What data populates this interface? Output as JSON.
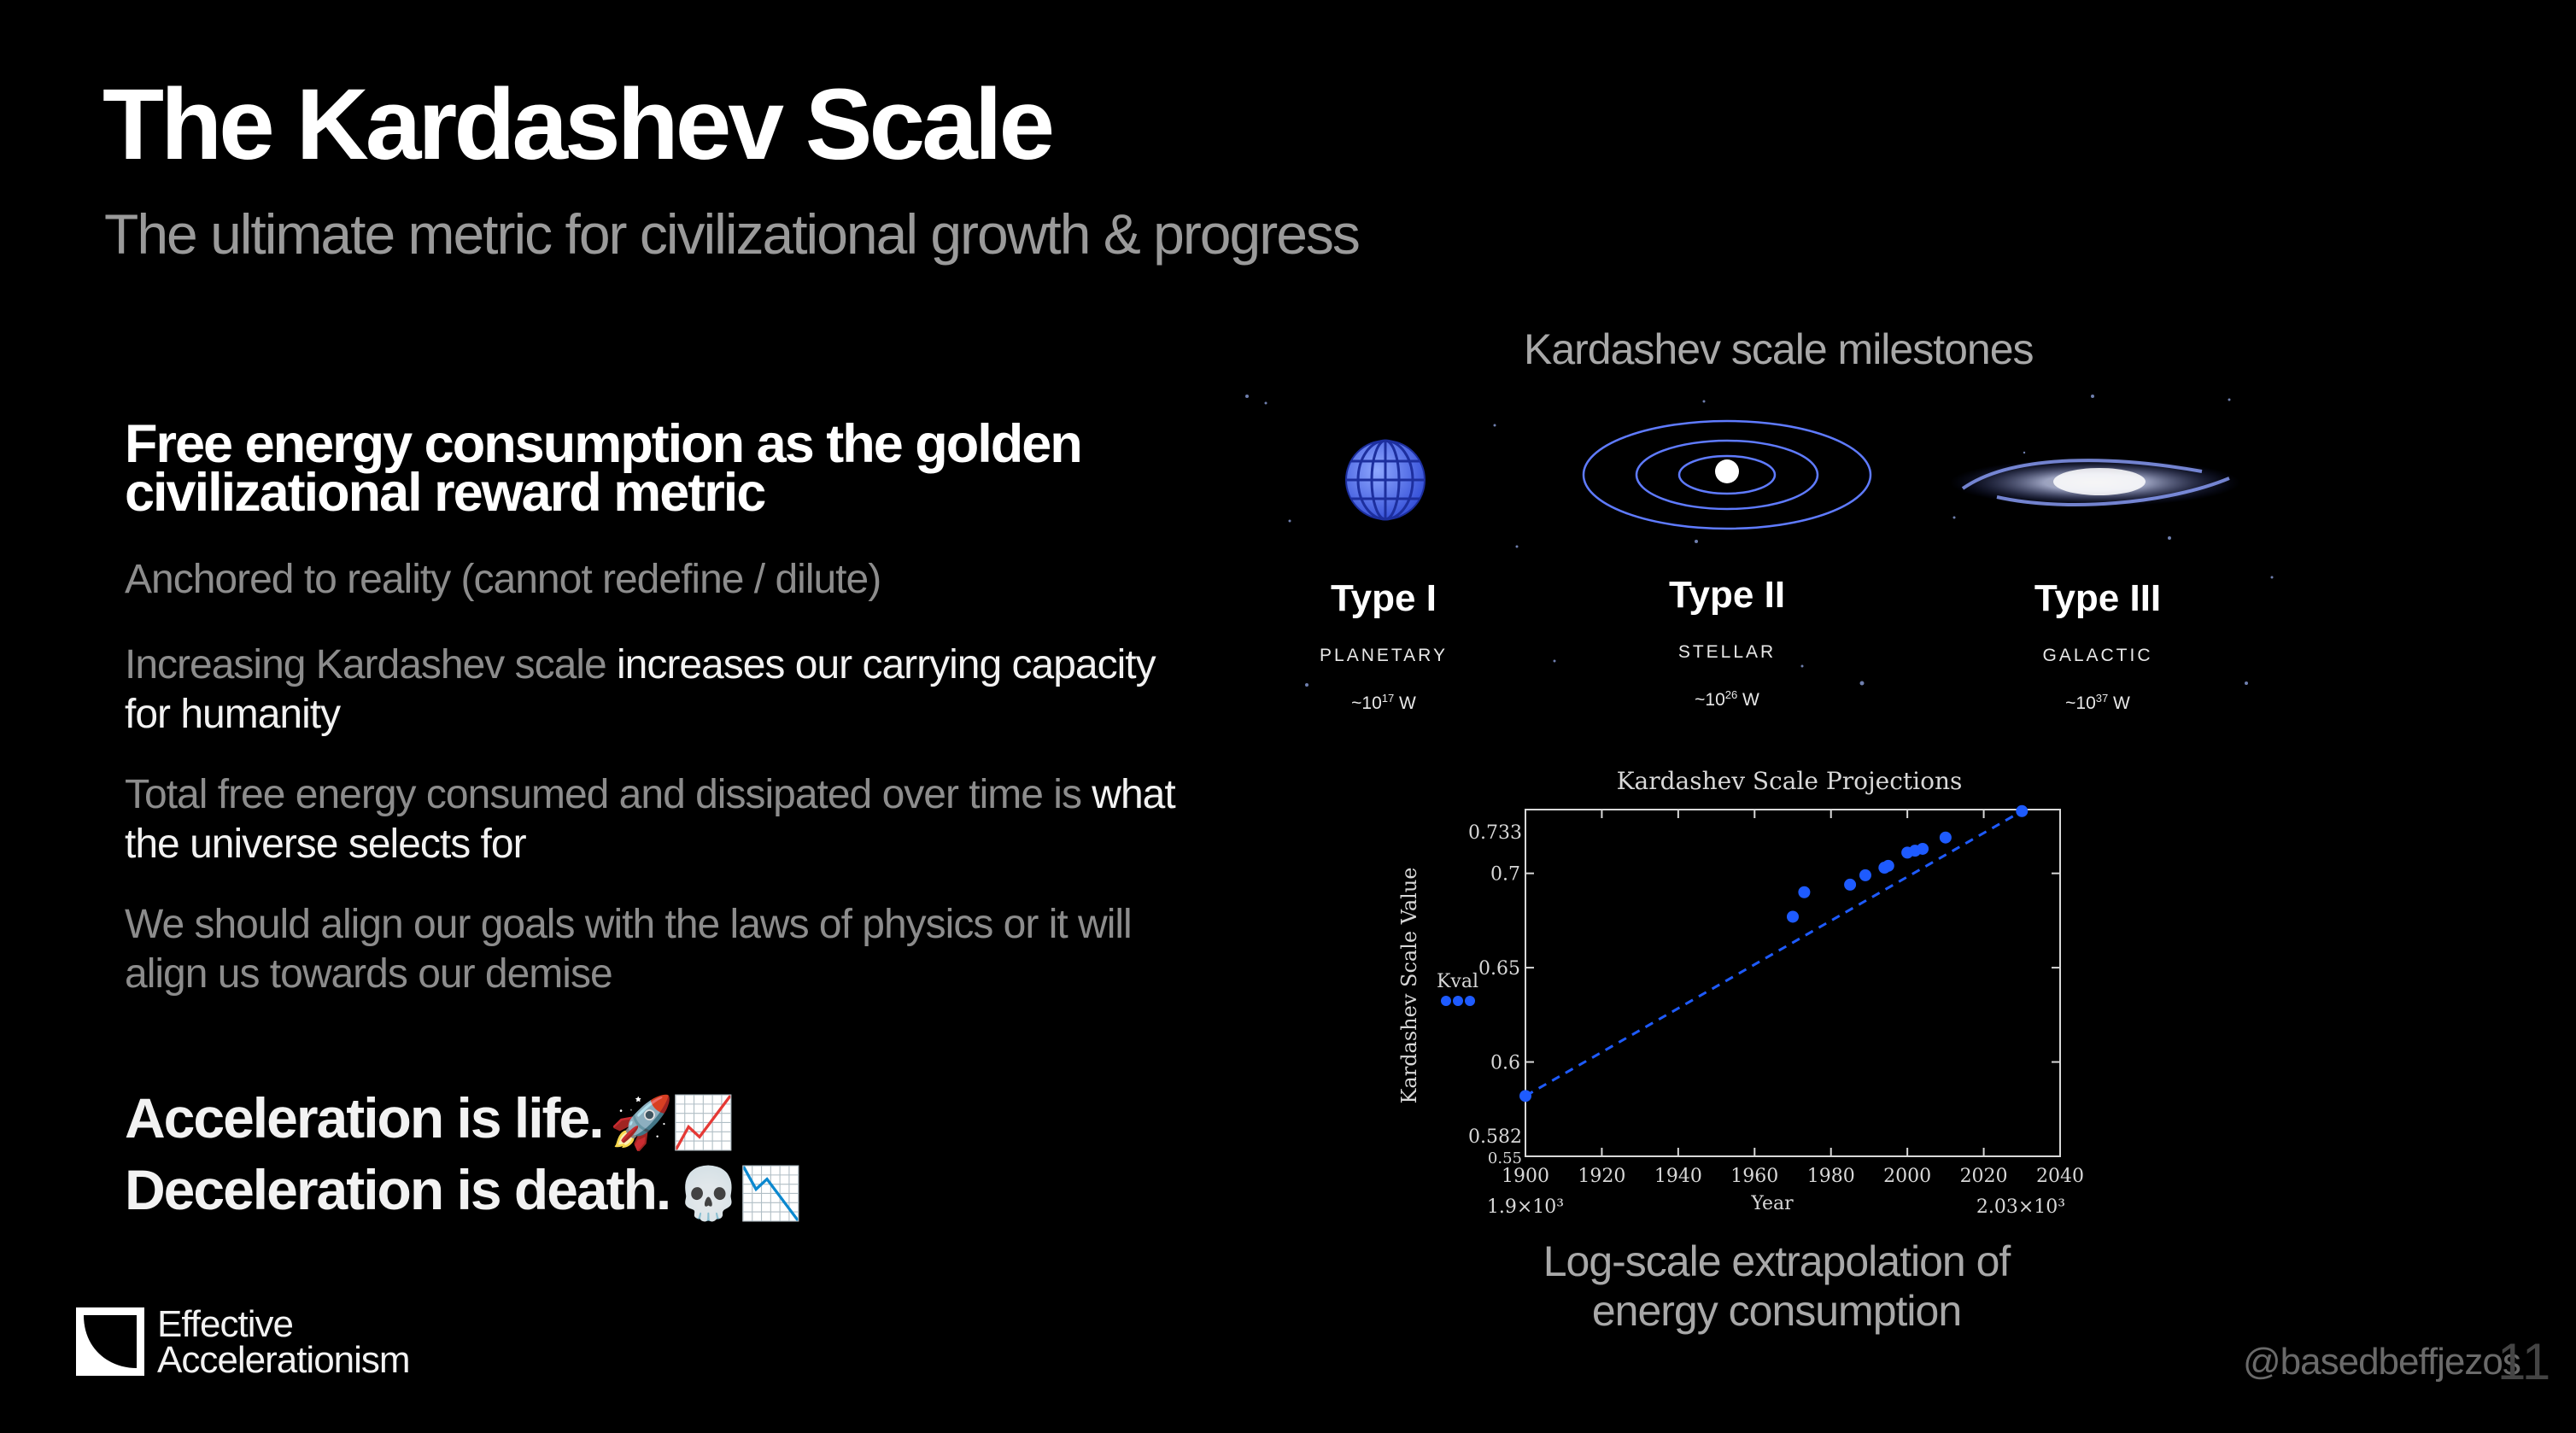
{
  "slide": {
    "title": "The Kardashev Scale",
    "subtitle": "The ultimate metric for civilizational growth & progress"
  },
  "left": {
    "headline": "Free energy consumption as the golden civilizational reward metric",
    "bullets": [
      {
        "dim": "Anchored to reality (cannot redefine / dilute)",
        "bright": ""
      },
      {
        "dim": "Increasing Kardashev scale ",
        "bright": "increases our carrying capacity for humanity"
      },
      {
        "dim": "Total free energy consumed and dissipated over time is ",
        "bright": "what the universe selects for"
      },
      {
        "dim": "We should align our goals with the laws of physics or it will align us towards our demise",
        "bright": ""
      }
    ],
    "motto_line1": "Acceleration is life.",
    "motto_line1_emoji": "🚀📈",
    "motto_line2": "Deceleration is death.",
    "motto_line2_emoji": "💀📉"
  },
  "milestones": {
    "heading": "Kardashev scale milestones",
    "types": [
      {
        "name": "Type I",
        "category": "PLANETARY",
        "power_base": "~10",
        "power_exp": "17",
        "power_unit": " W",
        "icon": "globe-icon"
      },
      {
        "name": "Type II",
        "category": "STELLAR",
        "power_base": "~10",
        "power_exp": "26",
        "power_unit": " W",
        "icon": "solar-system-icon"
      },
      {
        "name": "Type III",
        "category": "GALACTIC",
        "power_base": "~10",
        "power_exp": "37",
        "power_unit": " W",
        "icon": "galaxy-icon"
      }
    ]
  },
  "chart_data": {
    "type": "scatter",
    "title": "Kardashev Scale Projections",
    "xlabel": "Year",
    "ylabel": "Kardashev Scale Value",
    "xlim": [
      1900,
      2040
    ],
    "ylim": [
      0.55,
      0.7338
    ],
    "x_ticks": [
      "1900",
      "1920",
      "1940",
      "1960",
      "1980",
      "2000",
      "2020",
      "2040"
    ],
    "y_ticks": [
      "0.6",
      "0.65",
      "0.7"
    ],
    "y_min_label": "0.582",
    "y_max_label": "0.733",
    "y_bottom_label": "0.55",
    "x_min_label": "1.9×10³",
    "x_max_label": "2.03×10³",
    "legend_label": "Kval",
    "legend_position": "left",
    "series": [
      {
        "name": "Kval",
        "x": [
          1900,
          1970,
          1973,
          1985,
          1989,
          1994,
          1995,
          2000,
          2002,
          2004,
          2010,
          2030
        ],
        "y": [
          0.582,
          0.677,
          0.69,
          0.694,
          0.699,
          0.703,
          0.704,
          0.711,
          0.712,
          0.713,
          0.719,
          0.733
        ]
      }
    ],
    "trend": {
      "x": [
        1900,
        2030
      ],
      "y": [
        0.582,
        0.733
      ],
      "style": "dashed"
    },
    "color": "#1e5bff"
  },
  "chart_caption": "Log-scale extrapolation of energy consumption",
  "footer": {
    "logo_line1": "Effective",
    "logo_line2": "Accelerationism",
    "handle": "@basedbeffjezos",
    "page_number": "11"
  }
}
